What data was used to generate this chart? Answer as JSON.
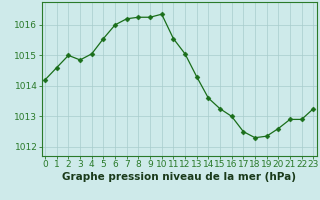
{
  "x": [
    0,
    1,
    2,
    3,
    4,
    5,
    6,
    7,
    8,
    9,
    10,
    11,
    12,
    13,
    14,
    15,
    16,
    17,
    18,
    19,
    20,
    21,
    22,
    23
  ],
  "y": [
    1014.2,
    1014.6,
    1015.0,
    1014.85,
    1015.05,
    1015.55,
    1016.0,
    1016.2,
    1016.25,
    1016.25,
    1016.35,
    1015.55,
    1015.05,
    1014.3,
    1013.6,
    1013.25,
    1013.0,
    1012.5,
    1012.3,
    1012.35,
    1012.6,
    1012.9,
    1012.9,
    1013.25
  ],
  "line_color": "#1a6e1a",
  "marker": "D",
  "marker_size": 2.5,
  "bg_color": "#ceeaea",
  "grid_color": "#a8cccc",
  "xlabel": "Graphe pression niveau de la mer (hPa)",
  "yticks": [
    1012,
    1013,
    1014,
    1015,
    1016
  ],
  "xtick_labels": [
    "0",
    "1",
    "2",
    "3",
    "4",
    "5",
    "6",
    "7",
    "8",
    "9",
    "10",
    "11",
    "12",
    "13",
    "14",
    "15",
    "16",
    "17",
    "18",
    "19",
    "20",
    "21",
    "22",
    "23"
  ],
  "ylim": [
    1011.7,
    1016.75
  ],
  "xlim": [
    -0.3,
    23.3
  ],
  "xlabel_fontsize": 7.5,
  "tick_fontsize": 6.5,
  "spine_color": "#2a7a2a"
}
